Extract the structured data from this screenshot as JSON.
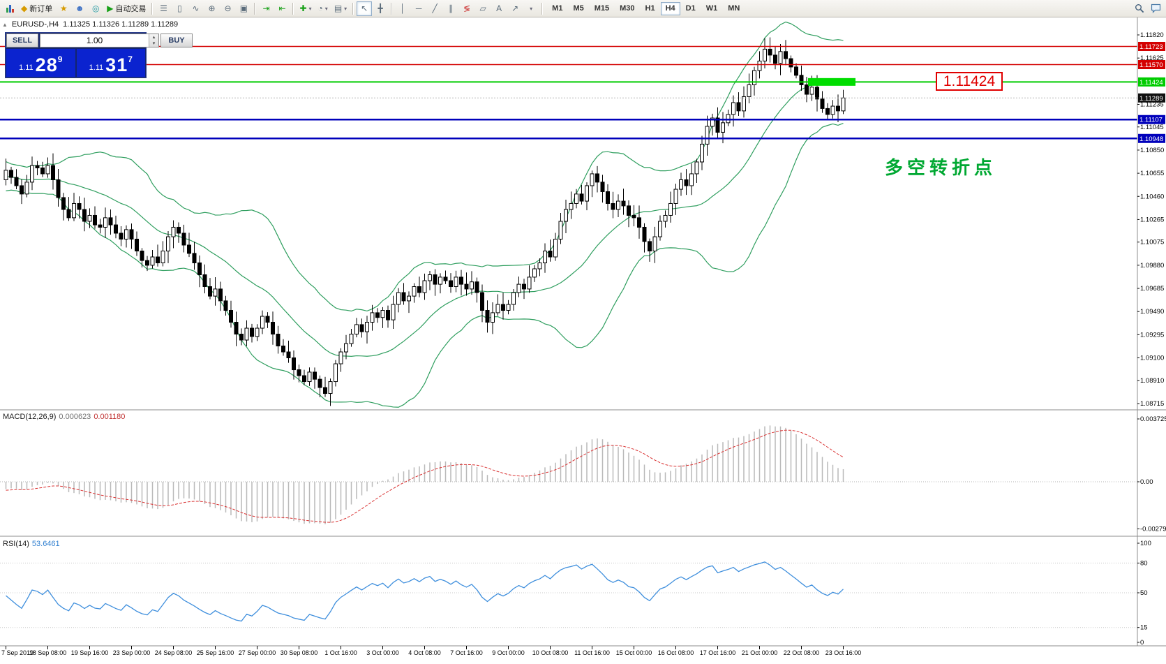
{
  "toolbar": {
    "new_order_label": "新订单",
    "autotrading_label": "自动交易",
    "timeframes": [
      "M1",
      "M5",
      "M15",
      "M30",
      "H1",
      "H4",
      "D1",
      "W1",
      "MN"
    ],
    "active_timeframe": "H4"
  },
  "icons": {
    "new_order": "◆",
    "favorites": "★",
    "accounts": "☻",
    "web": "◎",
    "play": "▶",
    "bars_chart": "☰",
    "candle_chart": "▯",
    "line_chart": "∿",
    "zoom_in": "⊕",
    "zoom_out": "⊖",
    "tile_windows": "▣",
    "auto_scroll": "⇥",
    "chart_shift": "⇤",
    "indicators_add": "✚",
    "period": "◔",
    "templates": "▤",
    "cursor": "↖",
    "crosshair": "╋",
    "vertical_line": "│",
    "horizontal_line": "─",
    "trendline": "╱",
    "channel": "∥",
    "fibonacci": "≶",
    "shapes": "▱",
    "text": "A",
    "arrow_label": "↗",
    "dropdown": "▾",
    "spin_up": "▴",
    "spin_down": "▾",
    "shift_marker": "▲"
  },
  "chart": {
    "symbol_period": "EURUSD-,H4",
    "ohlc": "1.11325 1.11326 1.11289 1.11289"
  },
  "trade_panel": {
    "sell_label": "SELL",
    "buy_label": "BUY",
    "lot_size": "1.00",
    "sell_price": {
      "prefix": "1.11",
      "big": "28",
      "sup": "9"
    },
    "buy_price": {
      "prefix": "1.11",
      "big": "31",
      "sup": "7"
    }
  },
  "annotations": {
    "callout": "1.11424",
    "turning_point": "多空转折点"
  },
  "indicators": {
    "macd": {
      "name": "MACD(12,26,9)",
      "value_main": "0.000623",
      "value_signal": "0.001180"
    },
    "rsi": {
      "name": "RSI(14)",
      "value": "53.6461"
    }
  },
  "colors": {
    "bollinger": "#2e9e5e",
    "candle_up": "#ffffff",
    "candle_down": "#000000",
    "macd_hist": "#b9b9b9",
    "macd_signal": "#d93030",
    "rsi_line": "#3f8fdd",
    "line_red": "#d40000",
    "line_blue": "#0000bb",
    "line_green": "#00cc00",
    "highlight_green": "#00dd00",
    "tag_black": "#111111"
  },
  "chart_data": {
    "type": "candlestick",
    "symbol": "EURUSD",
    "timeframe": "H4",
    "bollinger": {
      "period": 20,
      "deviation": 2
    },
    "pre_closes": [
      1.108,
      1.1075,
      1.107,
      1.1072,
      1.1068,
      1.1065,
      1.107,
      1.1066,
      1.1062,
      1.1066,
      1.106,
      1.1058,
      1.1062,
      1.1056,
      1.106,
      1.1055,
      1.1058,
      1.1052,
      1.1056,
      1.106
    ],
    "closes": [
      1.1068,
      1.1062,
      1.1055,
      1.1048,
      1.1058,
      1.1072,
      1.107,
      1.1065,
      1.1072,
      1.106,
      1.1045,
      1.1035,
      1.1028,
      1.104,
      1.1035,
      1.1025,
      1.103,
      1.1022,
      1.102,
      1.1028,
      1.1022,
      1.1015,
      1.101,
      1.1018,
      1.101,
      1.1,
      1.0992,
      1.0988,
      1.0995,
      1.099,
      1.1,
      1.1012,
      1.102,
      1.1015,
      1.1005,
      1.0998,
      1.099,
      1.098,
      1.097,
      1.0962,
      1.0968,
      1.0958,
      1.095,
      1.094,
      1.093,
      1.0925,
      1.0935,
      1.0928,
      1.0935,
      1.0945,
      1.094,
      1.093,
      1.092,
      1.0915,
      1.091,
      1.09,
      1.0895,
      1.089,
      1.0898,
      1.0892,
      1.0885,
      1.088,
      1.089,
      1.0905,
      1.0915,
      1.0922,
      1.093,
      1.0938,
      1.0932,
      1.094,
      1.0948,
      1.0944,
      1.095,
      1.0942,
      1.0955,
      1.0965,
      1.0958,
      1.0962,
      1.097,
      1.0965,
      1.0975,
      1.098,
      1.0972,
      1.0978,
      1.0975,
      1.097,
      1.0978,
      1.0972,
      1.0968,
      1.0974,
      1.0965,
      1.095,
      1.094,
      1.0948,
      1.0955,
      1.095,
      1.0955,
      1.0965,
      1.0972,
      1.0968,
      1.0978,
      1.0985,
      1.099,
      1.1,
      1.0995,
      1.101,
      1.1025,
      1.1035,
      1.104,
      1.1048,
      1.1042,
      1.1055,
      1.1065,
      1.1058,
      1.105,
      1.104,
      1.1035,
      1.1042,
      1.1038,
      1.103,
      1.1028,
      1.102,
      1.1008,
      1.1,
      1.1012,
      1.1025,
      1.103,
      1.104,
      1.1052,
      1.106,
      1.1055,
      1.1065,
      1.1075,
      1.109,
      1.1105,
      1.1112,
      1.11,
      1.1108,
      1.1115,
      1.1125,
      1.1118,
      1.113,
      1.114,
      1.1152,
      1.116,
      1.117,
      1.1165,
      1.1158,
      1.1168,
      1.1162,
      1.1155,
      1.1148,
      1.114,
      1.1132,
      1.1138,
      1.1128,
      1.112,
      1.1115,
      1.1122,
      1.1118,
      1.11289
    ],
    "time_labels": [
      {
        "i": 0,
        "label": "7 Sep 2019"
      },
      {
        "i": 8,
        "label": "18 Sep 08:00"
      },
      {
        "i": 16,
        "label": "19 Sep 16:00"
      },
      {
        "i": 24,
        "label": "23 Sep 00:00"
      },
      {
        "i": 32,
        "label": "24 Sep 08:00"
      },
      {
        "i": 40,
        "label": "25 Sep 16:00"
      },
      {
        "i": 48,
        "label": "27 Sep 00:00"
      },
      {
        "i": 56,
        "label": "30 Sep 08:00"
      },
      {
        "i": 64,
        "label": "1 Oct 16:00"
      },
      {
        "i": 72,
        "label": "3 Oct 00:00"
      },
      {
        "i": 80,
        "label": "4 Oct 08:00"
      },
      {
        "i": 88,
        "label": "7 Oct 16:00"
      },
      {
        "i": 96,
        "label": "9 Oct 00:00"
      },
      {
        "i": 104,
        "label": "10 Oct 08:00"
      },
      {
        "i": 112,
        "label": "11 Oct 16:00"
      },
      {
        "i": 120,
        "label": "15 Oct 00:00"
      },
      {
        "i": 128,
        "label": "16 Oct 08:00"
      },
      {
        "i": 136,
        "label": "17 Oct 16:00"
      },
      {
        "i": 144,
        "label": "21 Oct 00:00"
      },
      {
        "i": 152,
        "label": "22 Oct 08:00"
      },
      {
        "i": 160,
        "label": "23 Oct 16:00"
      }
    ],
    "price_ticks": [
      1.1182,
      1.11625,
      1.11235,
      1.11045,
      1.1085,
      1.10655,
      1.1046,
      1.10265,
      1.10075,
      1.0988,
      1.09685,
      1.0949,
      1.09295,
      1.091,
      1.0891,
      1.08715
    ],
    "horizontal_lines": [
      {
        "price": 1.11723,
        "color": "#d40000",
        "width": 1.5,
        "tag": "1.11723",
        "highlight": false
      },
      {
        "price": 1.1157,
        "color": "#d40000",
        "width": 1.5,
        "tag": "1.11570",
        "highlight": false
      },
      {
        "price": 1.11424,
        "color": "#00cc00",
        "width": 2,
        "tag": "1.11424",
        "highlight": true
      },
      {
        "price": 1.11107,
        "color": "#0000bb",
        "width": 2.5,
        "tag": "1.11107",
        "highlight": false
      },
      {
        "price": 1.10948,
        "color": "#0000bb",
        "width": 2.5,
        "tag": "1.10948",
        "highlight": false
      }
    ],
    "current_bid": {
      "price": 1.11289,
      "tag": "1.11289"
    },
    "macd": {
      "fast": 12,
      "slow": 26,
      "signal": 9,
      "axis_ticks": [
        "0.003725",
        "0.00",
        "-0.002794"
      ],
      "axis_values": [
        0.003725,
        0,
        -0.002794
      ]
    },
    "rsi": {
      "period": 14,
      "axis_ticks": [
        "100",
        "80",
        "50",
        "15",
        "0"
      ],
      "axis_values": [
        100,
        80,
        50,
        15,
        0
      ],
      "levels": [
        80,
        50,
        15
      ]
    }
  }
}
